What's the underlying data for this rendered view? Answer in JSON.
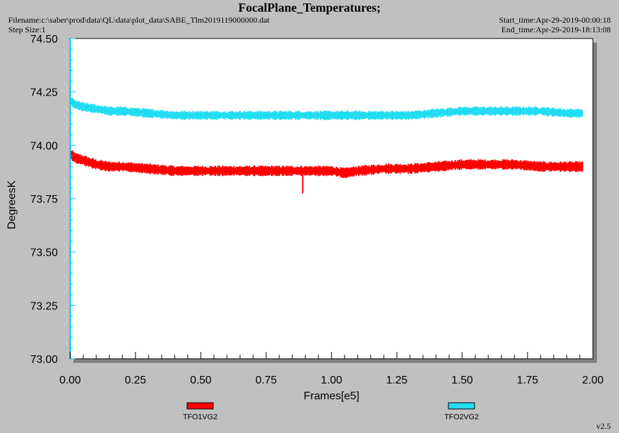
{
  "header": {
    "title": "FocalPlane_Temperatures;",
    "filename": "Filename:c:\\saber\\prod\\data\\QL\\data\\plot_data\\SABE_Tlm2019119000000.dat",
    "step_size": "Step Size:1",
    "start_time": "Start_time:Apr-29-2019-00:00:18",
    "end_time": "End_time:Apr-29-2019-18:13:08"
  },
  "version": "v2.5",
  "colors": {
    "background": "#c0c0c0",
    "plot_area": "#ffffff",
    "axis_accent": "#00c8e8"
  },
  "chart_data": {
    "type": "line",
    "title": "FocalPlane_Temperatures;",
    "xlabel": "Frames[e5]",
    "ylabel": "DegreesK",
    "xlim": [
      0.0,
      2.0
    ],
    "ylim": [
      73.0,
      74.5
    ],
    "xticks": [
      "0.00",
      "0.25",
      "0.50",
      "0.75",
      "1.00",
      "1.25",
      "1.50",
      "1.75",
      "2.00"
    ],
    "yticks": [
      "73.00",
      "73.25",
      "73.50",
      "73.75",
      "74.00",
      "74.25",
      "74.50"
    ],
    "grid": false,
    "legend_position": "bottom",
    "series": [
      {
        "name": "TFO1VG2",
        "color": "#ff0000",
        "noise_band": 0.025,
        "x": [
          0.0,
          0.02,
          0.05,
          0.1,
          0.15,
          0.2,
          0.3,
          0.4,
          0.5,
          0.6,
          0.7,
          0.8,
          0.9,
          1.0,
          1.05,
          1.1,
          1.2,
          1.3,
          1.4,
          1.5,
          1.6,
          1.7,
          1.8,
          1.9,
          1.96
        ],
        "y": [
          73.96,
          73.94,
          73.93,
          73.91,
          73.9,
          73.9,
          73.89,
          73.88,
          73.88,
          73.88,
          73.88,
          73.88,
          73.88,
          73.88,
          73.87,
          73.88,
          73.89,
          73.89,
          73.9,
          73.91,
          73.91,
          73.91,
          73.9,
          73.9,
          73.9
        ]
      },
      {
        "name": "TFO2VG2",
        "color": "#22ddf2",
        "noise_band": 0.022,
        "x": [
          0.0,
          0.02,
          0.05,
          0.1,
          0.15,
          0.2,
          0.3,
          0.4,
          0.5,
          0.6,
          0.7,
          0.8,
          0.9,
          1.0,
          1.05,
          1.1,
          1.2,
          1.3,
          1.4,
          1.5,
          1.6,
          1.7,
          1.8,
          1.9,
          1.96
        ],
        "y": [
          74.21,
          74.19,
          74.18,
          74.17,
          74.16,
          74.16,
          74.15,
          74.14,
          74.14,
          74.14,
          74.14,
          74.14,
          74.14,
          74.14,
          74.14,
          74.14,
          74.14,
          74.14,
          74.15,
          74.16,
          74.16,
          74.16,
          74.16,
          74.15,
          74.15
        ]
      }
    ],
    "annotations": [
      {
        "series": "TFO1VG2",
        "x": 0.89,
        "y_low": 73.775,
        "note": "spike"
      }
    ]
  }
}
